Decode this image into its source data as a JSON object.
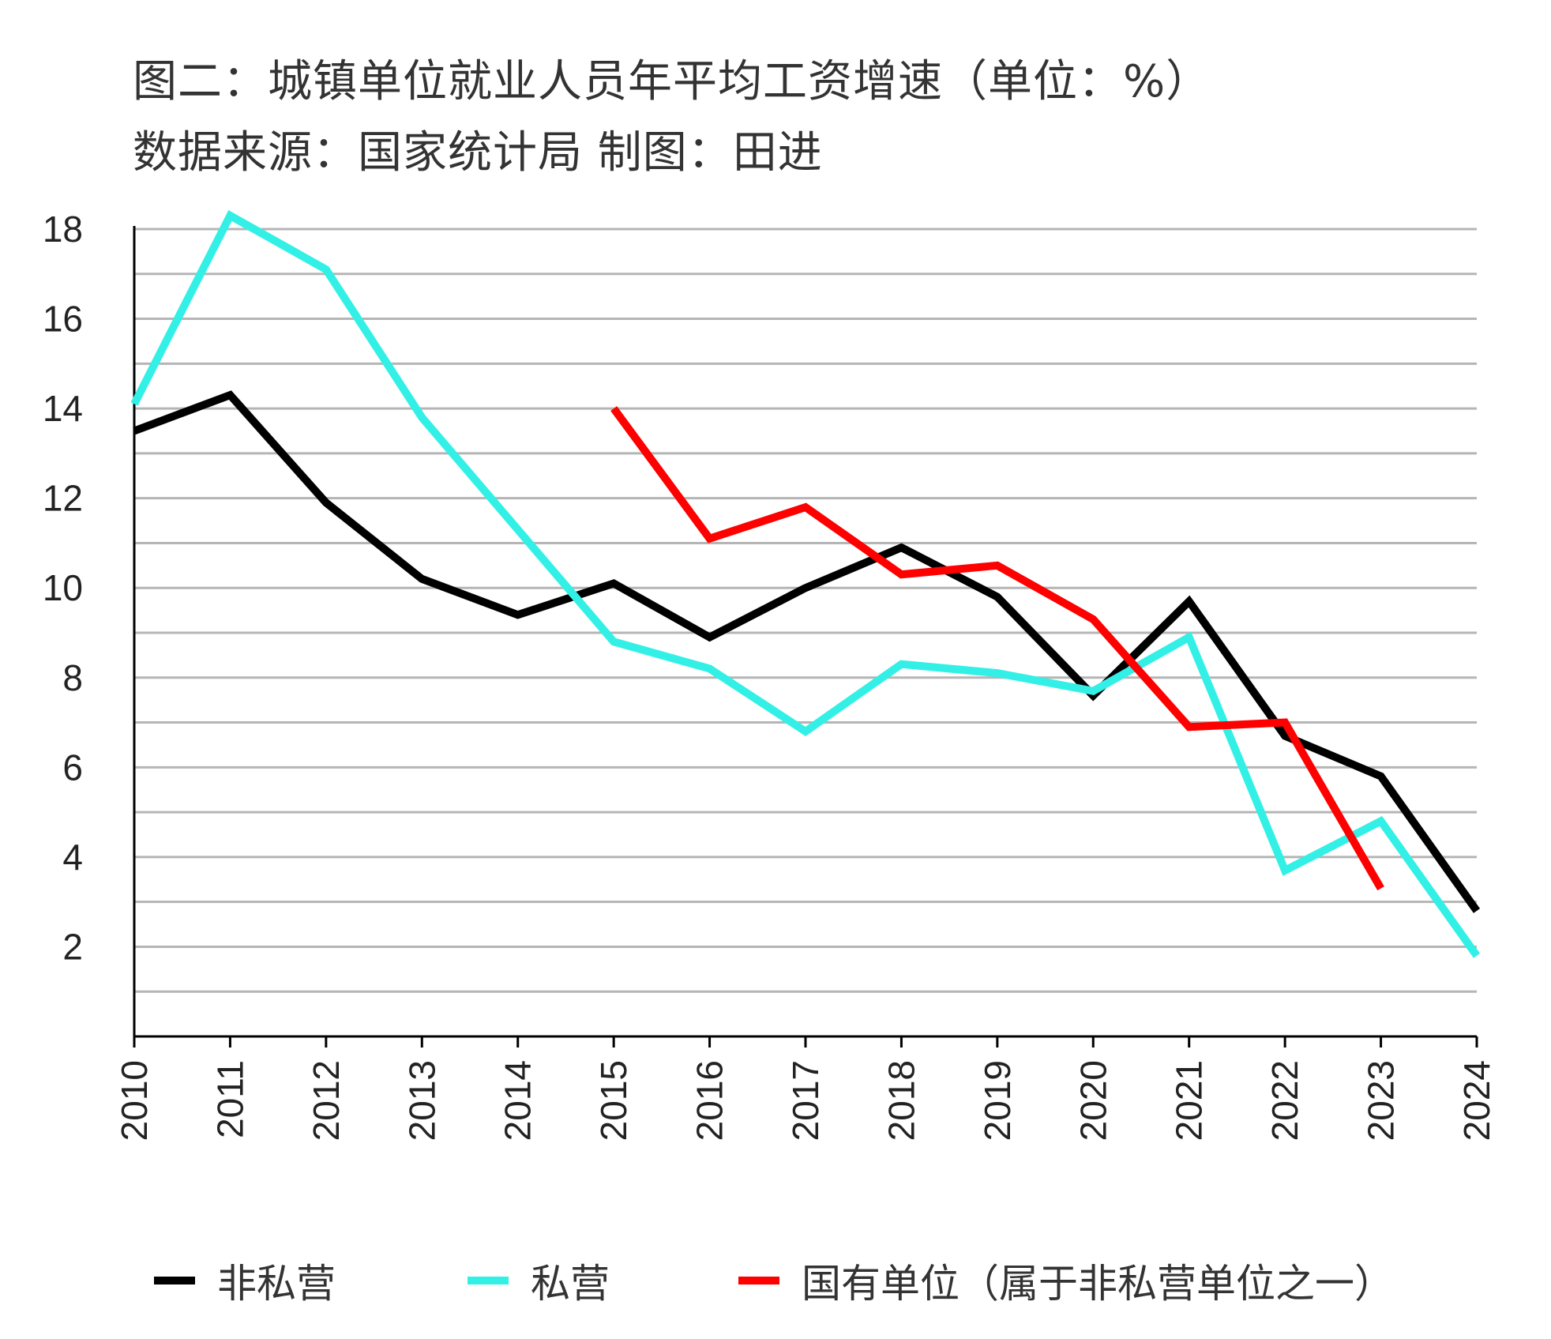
{
  "chart_data": {
    "type": "line",
    "title": "图二：城镇单位就业人员年平均工资增速（单位：%）",
    "subtitle": "数据来源：国家统计局 制图：田进",
    "xlabel": "",
    "ylabel": "",
    "x": [
      "2010",
      "2011",
      "2012",
      "2013",
      "2014",
      "2015",
      "2016",
      "2017",
      "2018",
      "2019",
      "2020",
      "2021",
      "2022",
      "2023",
      "2024"
    ],
    "ylim": [
      0,
      18
    ],
    "yticks": [
      2,
      4,
      6,
      8,
      10,
      12,
      14,
      16,
      18
    ],
    "grid": true,
    "grid_step": 1,
    "legend_placement": "bottom",
    "series": [
      {
        "name": "非私营",
        "color": "#000000",
        "values": [
          13.5,
          14.3,
          11.9,
          10.2,
          9.4,
          10.1,
          8.9,
          10.0,
          10.9,
          9.8,
          7.6,
          9.7,
          6.7,
          5.8,
          2.8
        ]
      },
      {
        "name": "私营",
        "color": "#33f0e6",
        "values": [
          14.1,
          18.3,
          17.1,
          13.8,
          11.3,
          8.8,
          8.2,
          6.8,
          8.3,
          8.1,
          7.7,
          8.9,
          3.7,
          4.8,
          1.8
        ]
      },
      {
        "name": "国有单位（属于非私营单位之一）",
        "color": "#ff0000",
        "values": [
          null,
          null,
          null,
          null,
          null,
          14.0,
          11.1,
          11.8,
          10.3,
          10.5,
          9.3,
          6.9,
          7.0,
          3.3,
          null
        ]
      }
    ]
  }
}
